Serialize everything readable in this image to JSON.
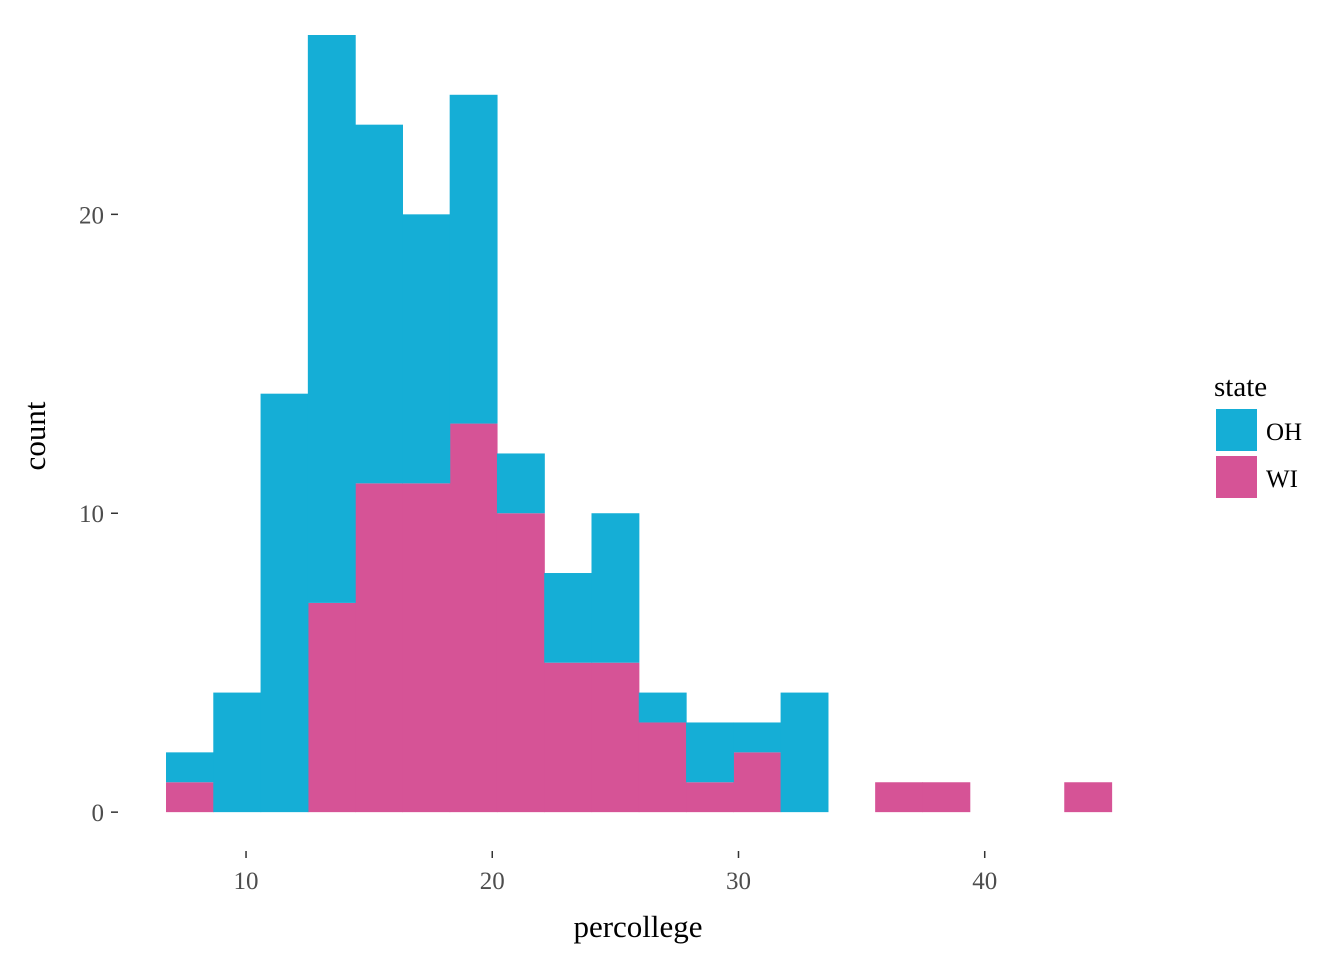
{
  "chart_data": {
    "type": "bar",
    "stacked": true,
    "xlabel": "percollege",
    "ylabel": "count",
    "bin_width": 1.92,
    "x_bin_starts": [
      6.75,
      8.67,
      10.59,
      12.51,
      14.43,
      16.35,
      18.27,
      20.19,
      22.11,
      24.03,
      25.95,
      27.87,
      29.79,
      31.71,
      33.63,
      35.55,
      37.47,
      39.39,
      41.31,
      43.23
    ],
    "series": [
      {
        "name": "WI",
        "color": "#d65396",
        "values": [
          1,
          0,
          0,
          7,
          11,
          11,
          13,
          10,
          5,
          5,
          3,
          1,
          2,
          0,
          0,
          1,
          1,
          0,
          0,
          1
        ]
      },
      {
        "name": "OH",
        "color": "#15aed6",
        "values": [
          1,
          4,
          14,
          19,
          12,
          9,
          11,
          2,
          3,
          5,
          1,
          2,
          1,
          4,
          0,
          0,
          0,
          0,
          0,
          0
        ]
      }
    ],
    "xlim": [
      4.8,
      47.2
    ],
    "ylim": [
      -1.3,
      26.0
    ],
    "x_ticks": [
      10,
      20,
      30,
      40
    ],
    "y_ticks": [
      0,
      10,
      20
    ],
    "grid": false,
    "legend": {
      "title": "state",
      "position": "right",
      "items": [
        "OH",
        "WI"
      ]
    }
  }
}
